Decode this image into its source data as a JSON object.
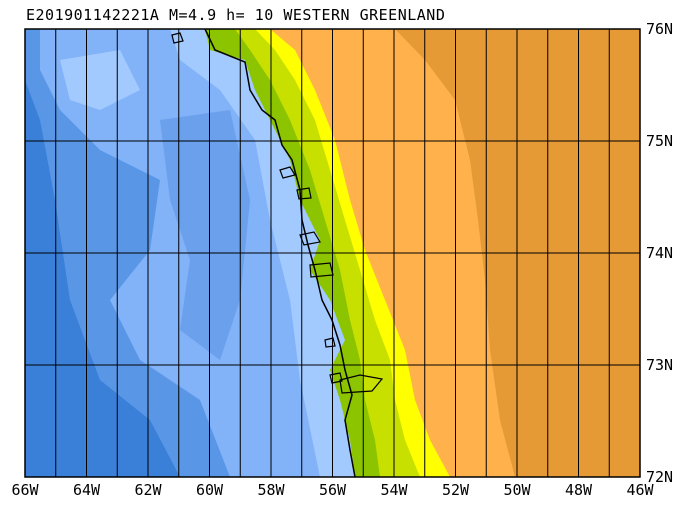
{
  "title": "E201901142221A M=4.9 h= 10 WESTERN GREENLAND",
  "lat_labels": [
    "76N",
    "75N",
    "74N",
    "73N",
    "72N"
  ],
  "lon_labels": [
    "66W",
    "64W",
    "62W",
    "60W",
    "58W",
    "56W",
    "54W",
    "52W",
    "50W",
    "48W",
    "46W"
  ],
  "extent": {
    "lon_min": -66,
    "lon_max": -46,
    "lat_min": 72,
    "lat_max": 76
  },
  "colors": {
    "ocean_deep": "#3a80d8",
    "ocean_mid": "#5a96e6",
    "ocean_light": "#82b2f8",
    "ocean_shallow": "#a2caff",
    "lowland": "#8cc400",
    "land_mid": "#c8e000",
    "land_high": "#ffff00",
    "plateau": "#ffb24c",
    "ice_high": "#e59a36"
  }
}
